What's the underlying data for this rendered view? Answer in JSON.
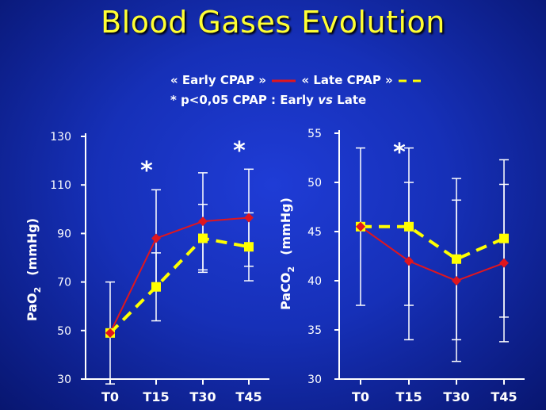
{
  "slide": {
    "title": "Blood Gases Evolution"
  },
  "legend": {
    "early_label": "« Early CPAP »",
    "late_label": "« Late CPAP »",
    "early_color": "#e0161e",
    "late_color": "#ffff00",
    "significance_prefix": "* p<0,05 CPAP : Early",
    "significance_vs": "vs",
    "significance_suffix": "Late"
  },
  "chart_data": [
    {
      "type": "line",
      "categories": [
        "T0",
        "T15",
        "T30",
        "T45"
      ],
      "ylabel": "PaO2",
      "ylabel_main": "PaO",
      "ylabel_sub": "2",
      "ylabel_unit": "(mmHg)",
      "ylim": [
        30,
        130
      ],
      "yticks": [
        30,
        50,
        70,
        90,
        110,
        130
      ],
      "significant": [
        false,
        true,
        false,
        true
      ],
      "significance_marker": "*",
      "series": [
        {
          "name": "« Early CPAP »",
          "color": "#e0161e",
          "style": "solid",
          "marker": "diamond",
          "values": [
            49,
            88,
            95,
            96.5
          ],
          "error": [
            null,
            20,
            20,
            20
          ]
        },
        {
          "name": "« Late CPAP »",
          "color": "#ffff00",
          "style": "dashed",
          "marker": "square",
          "values": [
            49,
            68,
            88,
            84.5
          ],
          "error": [
            21,
            14,
            14,
            14
          ]
        }
      ]
    },
    {
      "type": "line",
      "categories": [
        "T0",
        "T15",
        "T30",
        "T45"
      ],
      "ylabel": "PaCO2",
      "ylabel_main": "PaCO",
      "ylabel_sub": "2",
      "ylabel_unit": "(mmHg)",
      "ylim": [
        30,
        55
      ],
      "yticks": [
        30,
        35,
        40,
        45,
        50,
        55
      ],
      "significant": [
        false,
        true,
        false,
        false
      ],
      "significance_marker": "*",
      "series": [
        {
          "name": "« Early CPAP »",
          "color": "#e0161e",
          "style": "solid",
          "marker": "diamond",
          "values": [
            45.5,
            42,
            40,
            41.8
          ],
          "error": [
            null,
            8,
            8.2,
            8
          ]
        },
        {
          "name": "« Late CPAP »",
          "color": "#ffff00",
          "style": "dashed",
          "marker": "square",
          "values": [
            45.5,
            45.5,
            42.2,
            44.3
          ],
          "error": [
            8,
            8,
            8.2,
            8
          ]
        }
      ]
    }
  ]
}
